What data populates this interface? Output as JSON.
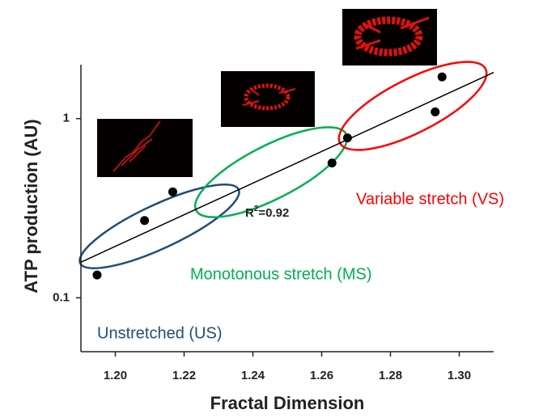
{
  "chart_data": {
    "type": "scatter",
    "x_label": "Fractal Dimension",
    "y_label": "ATP production (AU)",
    "x": [
      1.1947,
      1.2085,
      1.2167,
      1.263,
      1.2675,
      1.293,
      1.295
    ],
    "values": [
      0.134,
      0.27,
      0.39,
      0.565,
      0.78,
      1.09,
      1.71
    ],
    "color": "#000000",
    "fit": {
      "x": [
        1.19,
        1.31
      ],
      "y": [
        0.158,
        1.81
      ]
    },
    "xlim": [
      1.19,
      1.31
    ],
    "ylim": [
      0.05,
      2
    ],
    "log_y": true,
    "xticks": [
      {
        "value": 1.2,
        "label": "1.20"
      },
      {
        "value": 1.22,
        "label": "1.22"
      },
      {
        "value": 1.24,
        "label": "1.24"
      },
      {
        "value": 1.26,
        "label": "1.26"
      },
      {
        "value": 1.28,
        "label": "1.28"
      },
      {
        "value": 1.3,
        "label": "1.30"
      }
    ],
    "yticks": [
      0.1,
      1
    ],
    "r_squared": {
      "prefix": "R",
      "sup": "2",
      "text": "=0.92"
    },
    "groups": [
      {
        "label": "Unstretched (US)",
        "color": "#1f4e79"
      },
      {
        "label": "Monotonous stretch (MS)",
        "color": "#00b050"
      },
      {
        "label": "Variable stretch (VS)",
        "color": "#ff0000"
      }
    ]
  }
}
